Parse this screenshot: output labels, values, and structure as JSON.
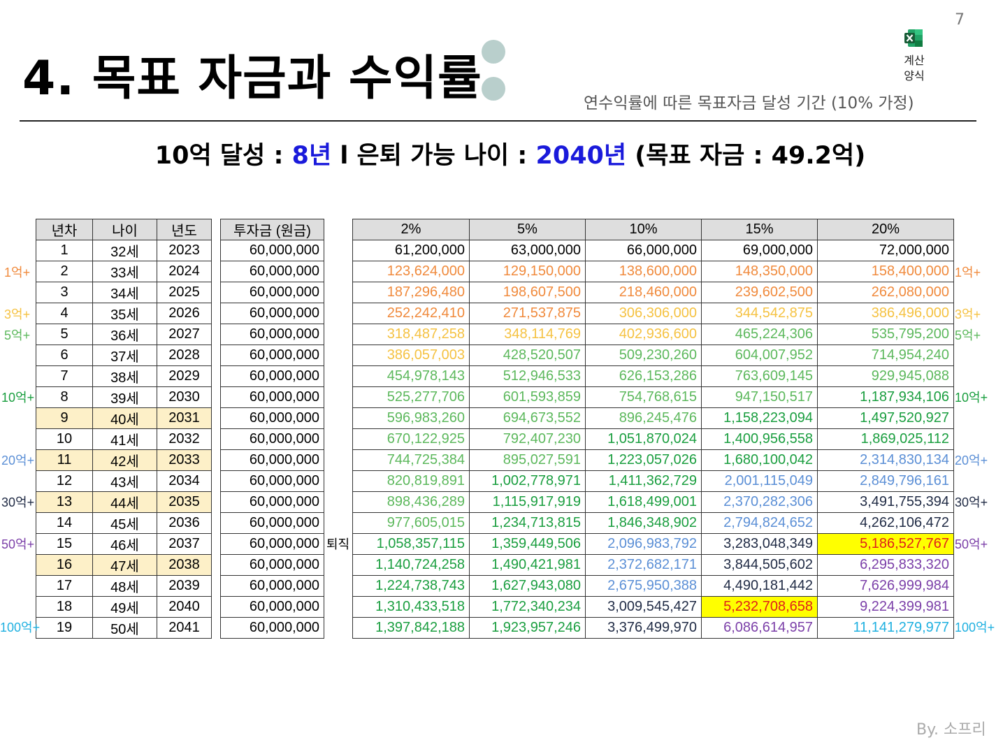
{
  "page_number": "7",
  "title": "4. 목표 자금과 수익률",
  "excel_icon": "excel-icon",
  "calc_label_line1": "계산",
  "calc_label_line2": "양식",
  "subtitle": "연수익률에 따른 목표자금 달성 기간 (10% 가정)",
  "headline": {
    "part1": "10억 달성 : ",
    "years": "8년",
    "part2": " l 은퇴 가능 나이 : ",
    "retire_year": "2040년",
    "part3": " (목표 자금 : 49.2억)"
  },
  "left_headers": [
    "년차",
    "나이",
    "년도",
    "투자금 (원금)"
  ],
  "right_headers": [
    "2%",
    "5%",
    "10%",
    "15%",
    "20%"
  ],
  "rows": [
    {
      "n": "1",
      "age": "32세",
      "year": "2023",
      "inv": "60,000,000",
      "v": [
        "61,200,000",
        "63,000,000",
        "66,000,000",
        "69,000,000",
        "72,000,000"
      ]
    },
    {
      "n": "2",
      "age": "33세",
      "year": "2024",
      "inv": "60,000,000",
      "v": [
        "123,624,000",
        "129,150,000",
        "138,600,000",
        "148,350,000",
        "158,400,000"
      ]
    },
    {
      "n": "3",
      "age": "34세",
      "year": "2025",
      "inv": "60,000,000",
      "v": [
        "187,296,480",
        "198,607,500",
        "218,460,000",
        "239,602,500",
        "262,080,000"
      ]
    },
    {
      "n": "4",
      "age": "35세",
      "year": "2026",
      "inv": "60,000,000",
      "v": [
        "252,242,410",
        "271,537,875",
        "306,306,000",
        "344,542,875",
        "386,496,000"
      ]
    },
    {
      "n": "5",
      "age": "36세",
      "year": "2027",
      "inv": "60,000,000",
      "v": [
        "318,487,258",
        "348,114,769",
        "402,936,600",
        "465,224,306",
        "535,795,200"
      ]
    },
    {
      "n": "6",
      "age": "37세",
      "year": "2028",
      "inv": "60,000,000",
      "v": [
        "386,057,003",
        "428,520,507",
        "509,230,260",
        "604,007,952",
        "714,954,240"
      ]
    },
    {
      "n": "7",
      "age": "38세",
      "year": "2029",
      "inv": "60,000,000",
      "v": [
        "454,978,143",
        "512,946,533",
        "626,153,286",
        "763,609,145",
        "929,945,088"
      ]
    },
    {
      "n": "8",
      "age": "39세",
      "year": "2030",
      "inv": "60,000,000",
      "v": [
        "525,277,706",
        "601,593,859",
        "754,768,615",
        "947,150,517",
        "1,187,934,106"
      ]
    },
    {
      "n": "9",
      "age": "40세",
      "year": "2031",
      "inv": "60,000,000",
      "v": [
        "596,983,260",
        "694,673,552",
        "896,245,476",
        "1,158,223,094",
        "1,497,520,927"
      ]
    },
    {
      "n": "10",
      "age": "41세",
      "year": "2032",
      "inv": "60,000,000",
      "v": [
        "670,122,925",
        "792,407,230",
        "1,051,870,024",
        "1,400,956,558",
        "1,869,025,112"
      ]
    },
    {
      "n": "11",
      "age": "42세",
      "year": "2033",
      "inv": "60,000,000",
      "v": [
        "744,725,384",
        "895,027,591",
        "1,223,057,026",
        "1,680,100,042",
        "2,314,830,134"
      ]
    },
    {
      "n": "12",
      "age": "43세",
      "year": "2034",
      "inv": "60,000,000",
      "v": [
        "820,819,891",
        "1,002,778,971",
        "1,411,362,729",
        "2,001,115,049",
        "2,849,796,161"
      ]
    },
    {
      "n": "13",
      "age": "44세",
      "year": "2035",
      "inv": "60,000,000",
      "v": [
        "898,436,289",
        "1,115,917,919",
        "1,618,499,001",
        "2,370,282,306",
        "3,491,755,394"
      ]
    },
    {
      "n": "14",
      "age": "45세",
      "year": "2036",
      "inv": "60,000,000",
      "v": [
        "977,605,015",
        "1,234,713,815",
        "1,846,348,902",
        "2,794,824,652",
        "4,262,106,472"
      ]
    },
    {
      "n": "15",
      "age": "46세",
      "year": "2037",
      "inv": "60,000,000",
      "v": [
        "1,058,357,115",
        "1,359,449,506",
        "2,096,983,792",
        "3,283,048,349",
        "5,186,527,767"
      ]
    },
    {
      "n": "16",
      "age": "47세",
      "year": "2038",
      "inv": "60,000,000",
      "v": [
        "1,140,724,258",
        "1,490,421,981",
        "2,372,682,171",
        "3,844,505,602",
        "6,295,833,320"
      ]
    },
    {
      "n": "17",
      "age": "48세",
      "year": "2039",
      "inv": "60,000,000",
      "v": [
        "1,224,738,743",
        "1,627,943,080",
        "2,675,950,388",
        "4,490,181,442",
        "7,626,999,984"
      ]
    },
    {
      "n": "18",
      "age": "49세",
      "year": "2040",
      "inv": "60,000,000",
      "v": [
        "1,310,433,518",
        "1,772,340,234",
        "3,009,545,427",
        "5,232,708,658",
        "9,224,399,981"
      ]
    },
    {
      "n": "19",
      "age": "50세",
      "year": "2041",
      "inv": "60,000,000",
      "v": [
        "1,397,842,188",
        "1,923,957,246",
        "3,376,499,970",
        "6,086,614,957",
        "11,141,279,977"
      ]
    }
  ],
  "highlight_rows": [
    9,
    11,
    13,
    16
  ],
  "tier_colors": [
    "#000000",
    "#f08a3c",
    "#f08a3c",
    "#f5c242",
    "#f5c242",
    "#f5c242",
    "#5cb85c",
    "#1a9e3f",
    "#1a9e3f",
    "#1a9e3f",
    "#5b8fd6",
    "#5b8fd6",
    "#1f2a44",
    "#1f2a44",
    "#1f2a44",
    "#7b3fa8",
    "#7b3fa8",
    "#7b3fa8",
    "#1fb0e0"
  ],
  "milestones_left": [
    {
      "row": 2,
      "label": "1억+",
      "color": "#f08a3c"
    },
    {
      "row": 4,
      "label": "3억+",
      "color": "#f5c242"
    },
    {
      "row": 5,
      "label": "5억+",
      "color": "#5cb85c"
    },
    {
      "row": 8,
      "label": "10억+",
      "color": "#1a9e3f"
    },
    {
      "row": 11,
      "label": "20억+",
      "color": "#5b8fd6"
    },
    {
      "row": 13,
      "label": "30억+",
      "color": "#1f2a44"
    },
    {
      "row": 15,
      "label": "50억+",
      "color": "#7b3fa8"
    },
    {
      "row": 19,
      "label": "100억+",
      "color": "#1fb0e0"
    }
  ],
  "milestones_right": [
    {
      "row": 2,
      "label": "1억+",
      "color": "#f08a3c"
    },
    {
      "row": 4,
      "label": "3억+",
      "color": "#f5c242"
    },
    {
      "row": 5,
      "label": "5억+",
      "color": "#5cb85c"
    },
    {
      "row": 8,
      "label": "10억+",
      "color": "#1a9e3f"
    },
    {
      "row": 11,
      "label": "20억+",
      "color": "#5b8fd6"
    },
    {
      "row": 13,
      "label": "30억+",
      "color": "#1f2a44"
    },
    {
      "row": 15,
      "label": "50억+",
      "color": "#7b3fa8"
    },
    {
      "row": 19,
      "label": "100억+",
      "color": "#1fb0e0"
    }
  ],
  "yellow_cells": [
    {
      "row": 15,
      "col": 4
    },
    {
      "row": 18,
      "col": 3
    }
  ],
  "retire_label": "퇴직",
  "retire_row": 15,
  "author": "By. 소프리"
}
